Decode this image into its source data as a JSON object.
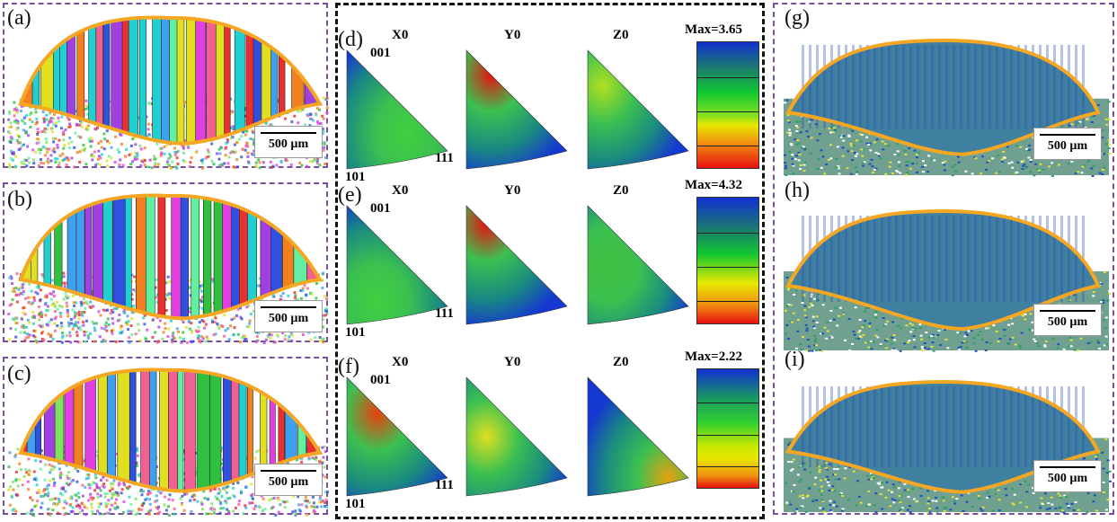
{
  "ebsd_panels": [
    {
      "label": "(a)",
      "scale": "500 µm"
    },
    {
      "label": "(b)",
      "scale": "500 µm"
    },
    {
      "label": "(c)",
      "scale": "500 µm"
    }
  ],
  "ipf_rows": [
    {
      "label": "(d)",
      "headers": [
        "X0",
        "Y0",
        "Z0"
      ],
      "max": "Max=3.65",
      "corners": [
        "001",
        "101",
        "111"
      ]
    },
    {
      "label": "(e)",
      "headers": [
        "X0",
        "Y0",
        "Z0"
      ],
      "max": "Max=4.32",
      "corners": [
        "001",
        "101",
        "111"
      ]
    },
    {
      "label": "(f)",
      "headers": [
        "X0",
        "Y0",
        "Z0"
      ],
      "max": "Max=2.22",
      "corners": [
        "001",
        "101",
        "111"
      ]
    }
  ],
  "kam_panels": [
    {
      "label": "(g)",
      "scale": "500 µm"
    },
    {
      "label": "(h)",
      "scale": "500 µm"
    },
    {
      "label": "(i)",
      "scale": "500 µm"
    }
  ],
  "colors": {
    "outline": "#f5a623",
    "left_frame": "#7a4fa3",
    "middle_frame": "#111111"
  }
}
